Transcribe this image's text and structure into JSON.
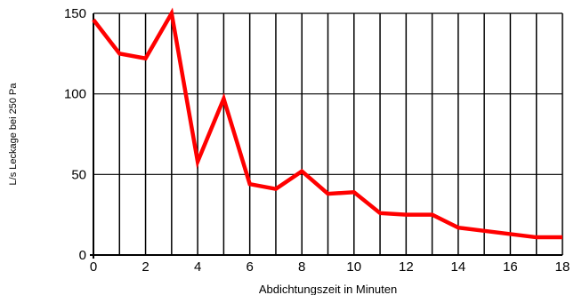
{
  "chart_data": {
    "type": "line",
    "xlabel": "Abdichtungszeit in Minuten",
    "ylabel": "L/s Leckage bei 250 Pa",
    "xlim": [
      0,
      18
    ],
    "ylim": [
      0,
      150
    ],
    "x_ticks": [
      0,
      2,
      4,
      6,
      8,
      10,
      12,
      14,
      16,
      18
    ],
    "y_ticks": [
      0,
      50,
      100,
      150
    ],
    "grid": true,
    "line_color": "#ff0000",
    "series": [
      {
        "x": [
          0,
          1,
          2,
          3,
          4,
          5,
          6,
          7,
          8,
          9,
          10,
          11,
          12,
          13,
          14,
          15,
          16,
          17,
          18
        ],
        "values": [
          146,
          125,
          122,
          150,
          58,
          97,
          44,
          41,
          52,
          38,
          39,
          26,
          25,
          25,
          17,
          15,
          13,
          11,
          11
        ]
      }
    ]
  }
}
